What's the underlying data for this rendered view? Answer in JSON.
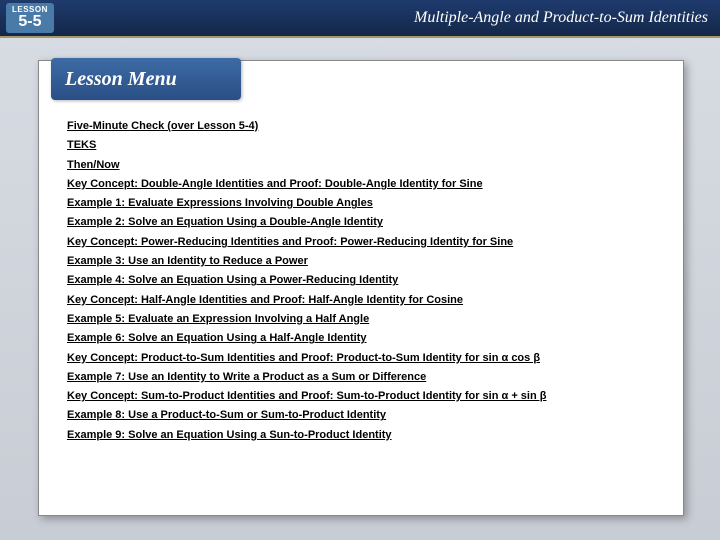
{
  "header": {
    "lesson_label": "LESSON",
    "lesson_number": "5-5",
    "title": "Multiple-Angle and Product-to-Sum Identities"
  },
  "menu": {
    "tab_label": "Lesson Menu",
    "items": [
      "Five-Minute Check (over Lesson 5-4)",
      "TEKS",
      "Then/Now",
      "Key Concept: Double-Angle Identities and Proof:  Double-Angle Identity for Sine",
      "Example 1:  Evaluate Expressions Involving Double Angles",
      "Example 2:  Solve an Equation Using a Double-Angle Identity",
      "Key Concept:  Power-Reducing Identities and Proof:  Power-Reducing Identity for Sine",
      "Example 3:  Use an Identity to Reduce a Power",
      "Example 4:  Solve an Equation Using a Power-Reducing Identity",
      "Key Concept:  Half-Angle Identities and Proof: Half-Angle Identity for Cosine",
      "Example 5:  Evaluate an Expression Involving a Half Angle",
      "Example 6:  Solve an Equation Using a Half-Angle Identity",
      "Key Concept: Product-to-Sum Identities and Proof: Product-to-Sum Identity for sin α cos β",
      "Example 7:  Use an Identity to Write a Product as a Sum or Difference",
      "Key Concept:  Sum-to-Product Identities and Proof: Sum-to-Product Identity for sin α + sin β",
      "Example 8:  Use a Product-to-Sum or Sum-to-Product Identity",
      "Example 9:  Solve an Equation Using a Sun-to-Product Identity"
    ]
  },
  "colors": {
    "header_bg_top": "#1e3a6e",
    "header_bg_bottom": "#142848",
    "tab_bg_top": "#3d6ba5",
    "tab_bg_bottom": "#2a4f85",
    "badge_bg": "#4a7ba8",
    "body_bg_top": "#d8dce3",
    "body_bg_bottom": "#c8ccd4",
    "card_bg": "#ffffff",
    "accent_border": "#a89868"
  }
}
